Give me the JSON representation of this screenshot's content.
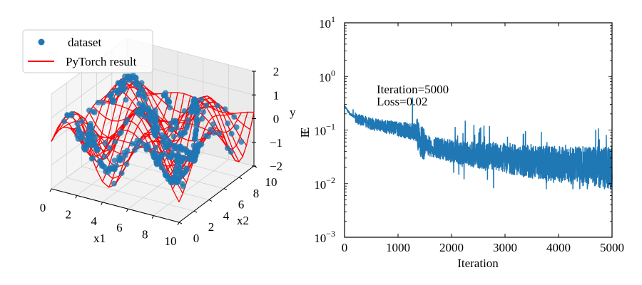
{
  "colors": {
    "dataset": "#1f77b4",
    "fit": "#ff0000",
    "loss": "#1f77b4",
    "pane": "#f2f2f2",
    "grid": "#d0d0d0"
  },
  "chart_data": [
    {
      "type": "scatter",
      "title": "",
      "projection": "3d",
      "xlabel": "x1",
      "ylabel": "x2",
      "zlabel": "y",
      "extra_label": "E",
      "xlim": [
        0,
        10
      ],
      "ylim": [
        0,
        10
      ],
      "zlim": [
        -2,
        2
      ],
      "xticks": [
        "0",
        "2",
        "4",
        "6",
        "8",
        "10"
      ],
      "yticks": [
        "0",
        "2",
        "4",
        "6",
        "8",
        "10"
      ],
      "zticks": [
        "−2",
        "−1",
        "0",
        "1",
        "2"
      ],
      "legend": {
        "placement": "upper-left",
        "entries": [
          {
            "label": "dataset",
            "marker": "dot"
          },
          {
            "label": "PyTorch result",
            "marker": "line"
          }
        ]
      },
      "surface": {
        "name": "PyTorch result",
        "kind": "wireframe",
        "approx_function": "sin(x1) * cos(x2)-like oscillating surface, amplitude ~1.5",
        "grid": [
          20,
          20
        ]
      },
      "scatter": {
        "name": "dataset",
        "approx_count": 500,
        "z_range": [
          -1.8,
          1.6
        ]
      }
    },
    {
      "type": "line",
      "title": "",
      "xlabel": "Iteration",
      "ylabel": "E",
      "xscale": "linear",
      "yscale": "log",
      "xlim": [
        0,
        5000
      ],
      "ylim": [
        0.001,
        10
      ],
      "xticks": [
        "0",
        "1000",
        "2000",
        "3000",
        "4000",
        "5000"
      ],
      "yticks": [
        {
          "base": "10",
          "exp": "1",
          "value": 10
        },
        {
          "base": "10",
          "exp": "0",
          "value": 1
        },
        {
          "base": "10",
          "exp": "−1",
          "value": 0.1
        },
        {
          "base": "10",
          "exp": "−2",
          "value": 0.01
        },
        {
          "base": "10",
          "exp": "−3",
          "value": 0.001
        }
      ],
      "annotation": [
        "Iteration=5000",
        "Loss=0.02"
      ],
      "series": [
        {
          "name": "loss",
          "trend_points": [
            {
              "x": 0,
              "y": 0.28
            },
            {
              "x": 100,
              "y": 0.2
            },
            {
              "x": 250,
              "y": 0.16
            },
            {
              "x": 500,
              "y": 0.13
            },
            {
              "x": 800,
              "y": 0.115
            },
            {
              "x": 1100,
              "y": 0.1
            },
            {
              "x": 1350,
              "y": 0.09
            },
            {
              "x": 1400,
              "y": 0.06
            },
            {
              "x": 1600,
              "y": 0.05
            },
            {
              "x": 2000,
              "y": 0.04
            },
            {
              "x": 2500,
              "y": 0.034
            },
            {
              "x": 3000,
              "y": 0.03
            },
            {
              "x": 3500,
              "y": 0.025
            },
            {
              "x": 4000,
              "y": 0.023
            },
            {
              "x": 4500,
              "y": 0.021
            },
            {
              "x": 5000,
              "y": 0.02
            }
          ],
          "spikes": [
            {
              "x": 1270,
              "y": 0.4
            },
            {
              "x": 160,
              "y": 0.24
            }
          ],
          "final_value": 0.02,
          "min_value": 0.008
        }
      ]
    }
  ]
}
